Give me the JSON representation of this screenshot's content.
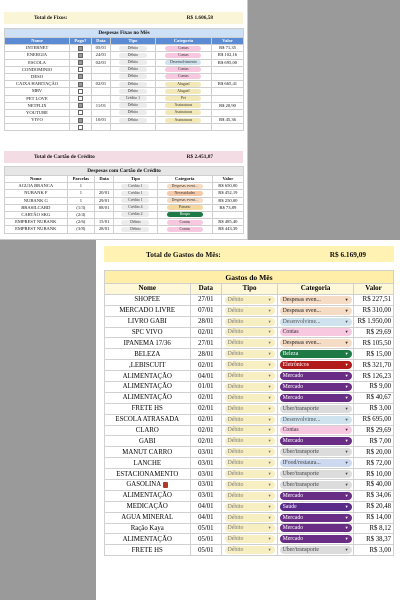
{
  "fixos_summary": {
    "label": "Total de Fixos:",
    "value": "R$ 1.606,58"
  },
  "fixos_table": {
    "title": "Despesas Fixas no Mês",
    "headers": [
      "Nome",
      "Pago?",
      "Data",
      "Tipo",
      "Categoria",
      "Valor"
    ],
    "rows": [
      {
        "nome": "INTERNET",
        "pago": true,
        "data": "05/01",
        "tipo": "Débito",
        "cat": "Contas",
        "valor": "R$ 71,35"
      },
      {
        "nome": "ENERGIA",
        "pago": true,
        "data": "24/01",
        "tipo": "Débito",
        "cat": "Contas",
        "valor": "R$ 102,16"
      },
      {
        "nome": "ESCOLA",
        "pago": true,
        "data": "02/01",
        "tipo": "Débito",
        "cat": "Desenvolvimento",
        "valor": "R$ 695,00"
      },
      {
        "nome": "CONDOMINIO",
        "pago": false,
        "data": "",
        "tipo": "Débito",
        "cat": "Contas",
        "valor": ""
      },
      {
        "nome": "DESO",
        "pago": true,
        "data": "",
        "tipo": "Débito",
        "cat": "Contas",
        "valor": ""
      },
      {
        "nome": "CAIXA HABITAÇÃO",
        "pago": true,
        "data": "02/01",
        "tipo": "Débito",
        "cat": "Aluguel",
        "valor": "R$ 665,41"
      },
      {
        "nome": "MRV",
        "pago": false,
        "data": "",
        "tipo": "Débito",
        "cat": "Aluguel",
        "valor": ""
      },
      {
        "nome": "PET LOVE",
        "pago": false,
        "data": "",
        "tipo": "Crédito 1",
        "cat": "Pet",
        "valor": ""
      },
      {
        "nome": "NETFLIX",
        "pago": true,
        "data": "11/01",
        "tipo": "Débito",
        "cat": "Assinaturas",
        "valor": "R$ 20,90"
      },
      {
        "nome": "YOUTUBE",
        "pago": false,
        "data": "",
        "tipo": "Débito",
        "cat": "Assinaturas",
        "valor": ""
      },
      {
        "nome": "VIVO",
        "pago": true,
        "data": "10/01",
        "tipo": "Débito",
        "cat": "Assinaturas",
        "valor": "R$ 45,36"
      },
      {
        "nome": "",
        "pago": false,
        "data": "",
        "tipo": "",
        "cat": "",
        "valor": ""
      }
    ]
  },
  "cartao_summary": {
    "label": "Total de Cartão de Crédito",
    "value": "R$ 2.451,87"
  },
  "cartao_table": {
    "title": "Despesas com Cartão de Crédito",
    "headers": [
      "Nome",
      "Parcelas",
      "Data",
      "Tipo",
      "Categoria",
      "Valor"
    ],
    "rows": [
      {
        "nome": "AGUIA BRANCA",
        "parcelas": "1",
        "data": "",
        "tipo": "Crédito 1",
        "cat": "Despesas event...",
        "valor": "R$ 650,00"
      },
      {
        "nome": "NUBANK F",
        "parcelas": "1",
        "data": "20/01",
        "tipo": "Crédito 1",
        "cat": "Necessidades",
        "valor": "R$ 452,19"
      },
      {
        "nome": "NUBANK G",
        "parcelas": "1",
        "data": "29/01",
        "tipo": "Crédito 1",
        "cat": "Despesas event...",
        "valor": "R$ 250,00"
      },
      {
        "nome": "BRASILCARD",
        "parcelas": "(1/3)",
        "data": "08/01",
        "tipo": "Crédito 4",
        "cat": "Passeio",
        "valor": "R$ 73,89"
      },
      {
        "nome": "CARTÃO SKG",
        "parcelas": "(2/4)",
        "data": "",
        "tipo": "Crédito 2",
        "cat": "Roupa",
        "valor": ""
      },
      {
        "nome": "EMPREST NUBANK",
        "parcelas": "(2/6)",
        "data": "15/01",
        "tipo": "Débito",
        "cat": "Contas",
        "valor": "R$ 485,40"
      },
      {
        "nome": "EMPREST NUBANK",
        "parcelas": "(3/8)",
        "data": "28/01",
        "tipo": "Débito",
        "cat": "Contas",
        "valor": "R$ 443,39"
      }
    ]
  },
  "gastos_total": {
    "label": "Total de Gastos do Mês:",
    "value": "R$ 6.169,09"
  },
  "gastos_table": {
    "title": "Gastos do Mês",
    "headers": [
      "Nome",
      "Data",
      "Tipo",
      "Categoria",
      "Valor"
    ],
    "rows": [
      {
        "nome": "SHOPEE",
        "data": "27/01",
        "tipo": "Débito",
        "cat": "Despesas even...",
        "cls": "despesas",
        "valor": "R$ 227,51"
      },
      {
        "nome": "MERCADO LIVRE",
        "data": "07/01",
        "tipo": "Débito",
        "cat": "Despesas even...",
        "cls": "despesas",
        "valor": "R$ 310,00"
      },
      {
        "nome": "LIVRO GABI",
        "data": "28/01",
        "tipo": "Débito",
        "cat": "Desenvolvime...",
        "cls": "desenv",
        "valor": "R$ 1.950,00"
      },
      {
        "nome": "SPC VIVO",
        "data": "02/01",
        "tipo": "Débito",
        "cat": "Contas",
        "cls": "contas",
        "valor": "R$ 29,69"
      },
      {
        "nome": "IPANEMA 17/36",
        "data": "27/01",
        "tipo": "Débito",
        "cat": "Despesas even...",
        "cls": "despesas",
        "valor": "R$ 105,50"
      },
      {
        "nome": "BELEZA",
        "data": "28/01",
        "tipo": "Débito",
        "cat": "Beleza",
        "cls": "beleza",
        "valor": "R$ 15,00"
      },
      {
        "nome": ",LEBISCUIT",
        "data": "02/01",
        "tipo": "Débito",
        "cat": "Eletrônicos",
        "cls": "eletro",
        "valor": "R$ 321,70"
      },
      {
        "nome": "ALIMENTAÇÃO",
        "data": "04/01",
        "tipo": "Débito",
        "cat": "Mercado",
        "cls": "mercado",
        "valor": "R$ 126,23"
      },
      {
        "nome": "ALIMENTAÇÃO",
        "data": "01/01",
        "tipo": "Débito",
        "cat": "Mercado",
        "cls": "mercado",
        "valor": "R$ 9,00"
      },
      {
        "nome": "ALIMENTAÇÃO",
        "data": "02/01",
        "tipo": "Débito",
        "cat": "Mercado",
        "cls": "mercado",
        "valor": "R$ 40,67"
      },
      {
        "nome": "FRETE HS",
        "data": "02/01",
        "tipo": "Débito",
        "cat": "Uber/transporte",
        "cls": "uber",
        "valor": "R$ 3,00"
      },
      {
        "nome": "ESCOLA ATRASADA",
        "data": "02/01",
        "tipo": "Débito",
        "cat": "Desenvolvime...",
        "cls": "desenv",
        "valor": "R$ 695,00"
      },
      {
        "nome": "CLARO",
        "data": "02/01",
        "tipo": "Débito",
        "cat": "Contas",
        "cls": "contas",
        "valor": "R$ 29,69"
      },
      {
        "nome": "GABI",
        "data": "02/01",
        "tipo": "Débito",
        "cat": "Mercado",
        "cls": "mercado",
        "valor": "R$ 7,00"
      },
      {
        "nome": "MANUT CARRO",
        "data": "03/01",
        "tipo": "Débito",
        "cat": "Uber/transporte",
        "cls": "uber",
        "valor": "R$ 20,00"
      },
      {
        "nome": "LANCHE",
        "data": "03/01",
        "tipo": "Débito",
        "cat": "IFood/restaura...",
        "cls": "ifood",
        "valor": "R$ 72,00"
      },
      {
        "nome": "ESTACIONAMENTO",
        "data": "03/01",
        "tipo": "Débito",
        "cat": "Uber/transporte",
        "cls": "uber",
        "valor": "R$ 10,00"
      },
      {
        "nome": "GASOLINA",
        "data": "03/01",
        "tipo": "Débito",
        "cat": "Uber/transporte",
        "cls": "uber",
        "valor": "R$ 40,00",
        "gas": true
      },
      {
        "nome": "ALIMENTAÇÃO",
        "data": "03/01",
        "tipo": "Débito",
        "cat": "Mercado",
        "cls": "mercado",
        "valor": "R$ 34,06"
      },
      {
        "nome": "MEDICAÇÃO",
        "data": "04/01",
        "tipo": "Débito",
        "cat": "Saúde",
        "cls": "saude",
        "valor": "R$ 20,48"
      },
      {
        "nome": "AGUA MINERAL",
        "data": "04/01",
        "tipo": "Débito",
        "cat": "Mercado",
        "cls": "mercado",
        "valor": "R$ 14,00"
      },
      {
        "nome": "Ração Kaya",
        "data": "05/01",
        "tipo": "Débito",
        "cat": "Mercado",
        "cls": "mercado",
        "valor": "R$ 8,12"
      },
      {
        "nome": "ALIMENTAÇÃO",
        "data": "05/01",
        "tipo": "Débito",
        "cat": "Mercado",
        "cls": "mercado",
        "valor": "R$ 38,37"
      },
      {
        "nome": "FRETE HS",
        "data": "05/01",
        "tipo": "Débito",
        "cat": "Uber/transporte",
        "cls": "uber",
        "valor": "R$ 3,00"
      }
    ]
  },
  "colors": {
    "background_gray": "#9a9a9a",
    "total_bar": "#fff2b3",
    "gastos_title": "#ffeea8",
    "fixos_header": "#5b8bd4",
    "mercado": "#6a2d86",
    "beleza": "#1e7a45",
    "eletronicos": "#b21a1a"
  },
  "icons": {
    "dropdown": "chevron-down-icon",
    "gasolina": "fuel-pump-icon"
  }
}
